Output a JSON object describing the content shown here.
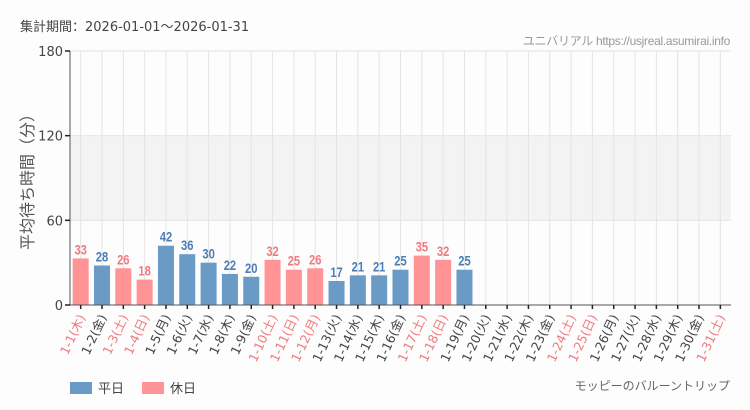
{
  "header": {
    "period": "集計期間：2026-01-01～2026-01-31",
    "credit": "ユニバリアル  https://usjreal.asumirai.info"
  },
  "legend": {
    "weekday_label": "平日",
    "holiday_label": "休日",
    "weekday_color": "#6a9ac6",
    "holiday_color": "#ff9396"
  },
  "attraction": "モッピーのバルーントリップ",
  "colors": {
    "weekday_text": "#4a7db5",
    "holiday_text": "#f07a7e",
    "label_dark": "#444444",
    "band": "#f3f3f3",
    "grid": "#e4e4e4"
  },
  "chart_data": {
    "type": "bar",
    "title": "",
    "xlabel": "",
    "ylabel": "平均待ち時間（分）",
    "ylim": [
      0,
      180
    ],
    "yticks": [
      0,
      60,
      120,
      180
    ],
    "shaded_band": [
      60,
      120
    ],
    "grid": true,
    "legend_position": "bottom-left",
    "categories": [
      "1-1(木)",
      "1-2(金)",
      "1-3(土)",
      "1-4(日)",
      "1-5(月)",
      "1-6(火)",
      "1-7(水)",
      "1-8(木)",
      "1-9(金)",
      "1-10(土)",
      "1-11(日)",
      "1-12(月)",
      "1-13(火)",
      "1-14(水)",
      "1-15(木)",
      "1-16(金)",
      "1-17(土)",
      "1-18(日)",
      "1-19(月)",
      "1-20(火)",
      "1-21(水)",
      "1-22(木)",
      "1-23(金)",
      "1-24(土)",
      "1-25(日)",
      "1-26(月)",
      "1-27(火)",
      "1-28(水)",
      "1-29(木)",
      "1-30(金)",
      "1-31(土)"
    ],
    "day_type": [
      "holiday",
      "weekday",
      "holiday",
      "holiday",
      "weekday",
      "weekday",
      "weekday",
      "weekday",
      "weekday",
      "holiday",
      "holiday",
      "holiday",
      "weekday",
      "weekday",
      "weekday",
      "weekday",
      "holiday",
      "holiday",
      "weekday",
      "weekday",
      "weekday",
      "weekday",
      "weekday",
      "holiday",
      "holiday",
      "weekday",
      "weekday",
      "weekday",
      "weekday",
      "weekday",
      "holiday"
    ],
    "series": [
      {
        "name": "平均待ち時間",
        "values": [
          33,
          28,
          26,
          18,
          42,
          36,
          30,
          22,
          20,
          32,
          25,
          26,
          17,
          21,
          21,
          25,
          35,
          32,
          25,
          null,
          null,
          null,
          null,
          null,
          null,
          null,
          null,
          null,
          null,
          null,
          null
        ]
      }
    ]
  }
}
